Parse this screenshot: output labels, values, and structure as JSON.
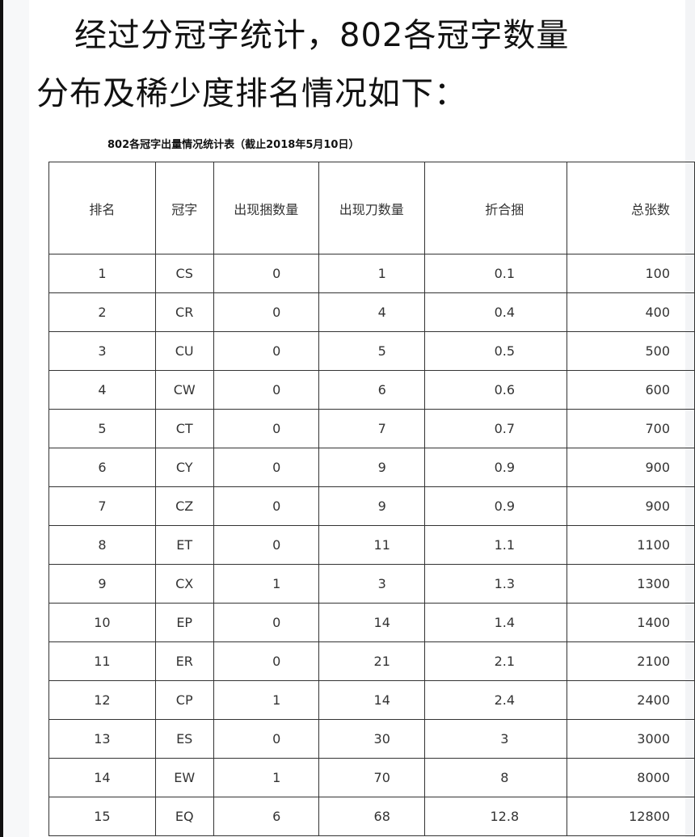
{
  "heading": {
    "line1": "经过分冠字统计，802各冠字数量",
    "line2": "分布及稀少度排名情况如下："
  },
  "table": {
    "caption": "802各冠字出量情况统计表（截止2018年5月10日）",
    "headers": [
      "排名",
      "冠字",
      "出现捆数量",
      "出现刀数量",
      "折合捆",
      "总张数"
    ],
    "rows": [
      [
        "1",
        "CS",
        "0",
        "1",
        "0.1",
        "100"
      ],
      [
        "2",
        "CR",
        "0",
        "4",
        "0.4",
        "400"
      ],
      [
        "3",
        "CU",
        "0",
        "5",
        "0.5",
        "500"
      ],
      [
        "4",
        "CW",
        "0",
        "6",
        "0.6",
        "600"
      ],
      [
        "5",
        "CT",
        "0",
        "7",
        "0.7",
        "700"
      ],
      [
        "6",
        "CY",
        "0",
        "9",
        "0.9",
        "900"
      ],
      [
        "7",
        "CZ",
        "0",
        "9",
        "0.9",
        "900"
      ],
      [
        "8",
        "ET",
        "0",
        "11",
        "1.1",
        "1100"
      ],
      [
        "9",
        "CX",
        "1",
        "3",
        "1.3",
        "1300"
      ],
      [
        "10",
        "EP",
        "0",
        "14",
        "1.4",
        "1400"
      ],
      [
        "11",
        "ER",
        "0",
        "21",
        "2.1",
        "2100"
      ],
      [
        "12",
        "CP",
        "1",
        "14",
        "2.4",
        "2400"
      ],
      [
        "13",
        "ES",
        "0",
        "30",
        "3",
        "3000"
      ],
      [
        "14",
        "EW",
        "1",
        "70",
        "8",
        "8000"
      ],
      [
        "15",
        "EQ",
        "6",
        "68",
        "12.8",
        "12800"
      ]
    ]
  }
}
